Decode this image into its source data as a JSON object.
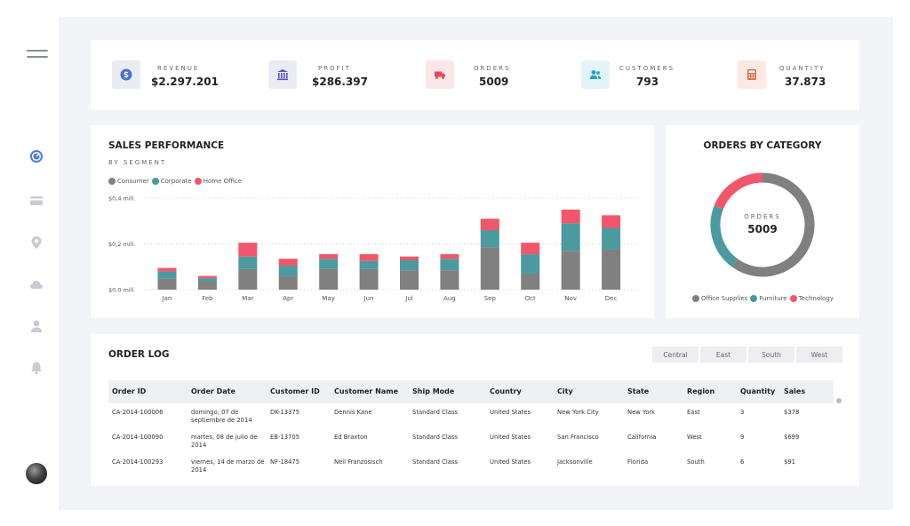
{
  "sidebar": {
    "icons": [
      "menu-icon",
      "dashboard-icon",
      "card-icon",
      "location-icon",
      "cloud-icon",
      "user-icon",
      "bell-icon"
    ],
    "active_color": "#4a7bdc",
    "inactive_color": "#c9ccd2"
  },
  "kpis": [
    {
      "label": "REVENUE",
      "value": "$2.297.201",
      "icon": "dollar-icon",
      "bg": "#e9ecf2",
      "fg": "#4a6fd6"
    },
    {
      "label": "PROFIT",
      "value": "$286.397",
      "icon": "bank-icon",
      "bg": "#ebebf3",
      "fg": "#5a4fcf"
    },
    {
      "label": "ORDERS",
      "value": "5009",
      "icon": "truck-icon",
      "bg": "#fbe6e9",
      "fg": "#e8485c"
    },
    {
      "label": "CUSTOMERS",
      "value": "793",
      "icon": "users-icon",
      "bg": "#e2f4f8",
      "fg": "#2a9fc3"
    },
    {
      "label": "QUANTITY",
      "value": "37.873",
      "icon": "calculator-icon",
      "bg": "#fbe9e2",
      "fg": "#e06a48"
    }
  ],
  "sales": {
    "title": "SALES PERFORMANCE",
    "subtitle": "BY SEGMENT"
  },
  "chart_data": [
    {
      "type": "bar",
      "stacked": true,
      "title": "SALES PERFORMANCE",
      "subtitle": "BY SEGMENT",
      "categories": [
        "Jan",
        "Feb",
        "Mar",
        "Apr",
        "May",
        "Jun",
        "Jul",
        "Aug",
        "Sep",
        "Oct",
        "Nov",
        "Dec"
      ],
      "series": [
        {
          "name": "Consumer",
          "color": "#808080",
          "values": [
            0.05,
            0.035,
            0.09,
            0.06,
            0.09,
            0.09,
            0.085,
            0.085,
            0.185,
            0.07,
            0.17,
            0.175
          ]
        },
        {
          "name": "Corporate",
          "color": "#4a9aa0",
          "values": [
            0.03,
            0.015,
            0.055,
            0.045,
            0.045,
            0.035,
            0.045,
            0.05,
            0.075,
            0.085,
            0.12,
            0.095
          ]
        },
        {
          "name": "Home Office",
          "color": "#f2566a",
          "values": [
            0.015,
            0.01,
            0.06,
            0.03,
            0.02,
            0.03,
            0.015,
            0.02,
            0.05,
            0.05,
            0.06,
            0.055
          ]
        }
      ],
      "yticks": [
        "$0,0 mill.",
        "$0,2 mill.",
        "$0,4 mill."
      ],
      "ylim": [
        0,
        0.4
      ],
      "grid": true,
      "legend": "top-left"
    },
    {
      "type": "pie",
      "donut": true,
      "title": "ORDERS BY CATEGORY",
      "center_label": "ORDERS",
      "center_value": "5009",
      "categories": [
        "Office Supplies",
        "Furniture",
        "Technology"
      ],
      "colors": [
        "#808080",
        "#4a9aa0",
        "#f2566a"
      ],
      "values": [
        0.6,
        0.21,
        0.19
      ],
      "legend": "bottom"
    }
  ],
  "order_log": {
    "title": "ORDER LOG",
    "regions": [
      "Central",
      "East",
      "South",
      "West"
    ],
    "columns": [
      "Order ID",
      "Order Date",
      "Customer ID",
      "Customer Name",
      "Ship Mode",
      "Country",
      "City",
      "State",
      "Region",
      "Quantity",
      "Sales"
    ],
    "rows": [
      [
        "CA-2014-100006",
        "domingo, 07 de septiembre de 2014",
        "DK-13375",
        "Dennis Kane",
        "Standard Class",
        "United States",
        "New York City",
        "New York",
        "East",
        "3",
        "$378"
      ],
      [
        "CA-2014-100090",
        "martes, 08 de julio de 2014",
        "EB-13705",
        "Ed Braxton",
        "Standard Class",
        "United States",
        "San Francisco",
        "California",
        "West",
        "9",
        "$699"
      ],
      [
        "CA-2014-100293",
        "viernes, 14 de marzo de 2014",
        "NF-18475",
        "Neil Französisch",
        "Standard Class",
        "United States",
        "Jacksonville",
        "Florida",
        "South",
        "6",
        "$91"
      ]
    ]
  }
}
